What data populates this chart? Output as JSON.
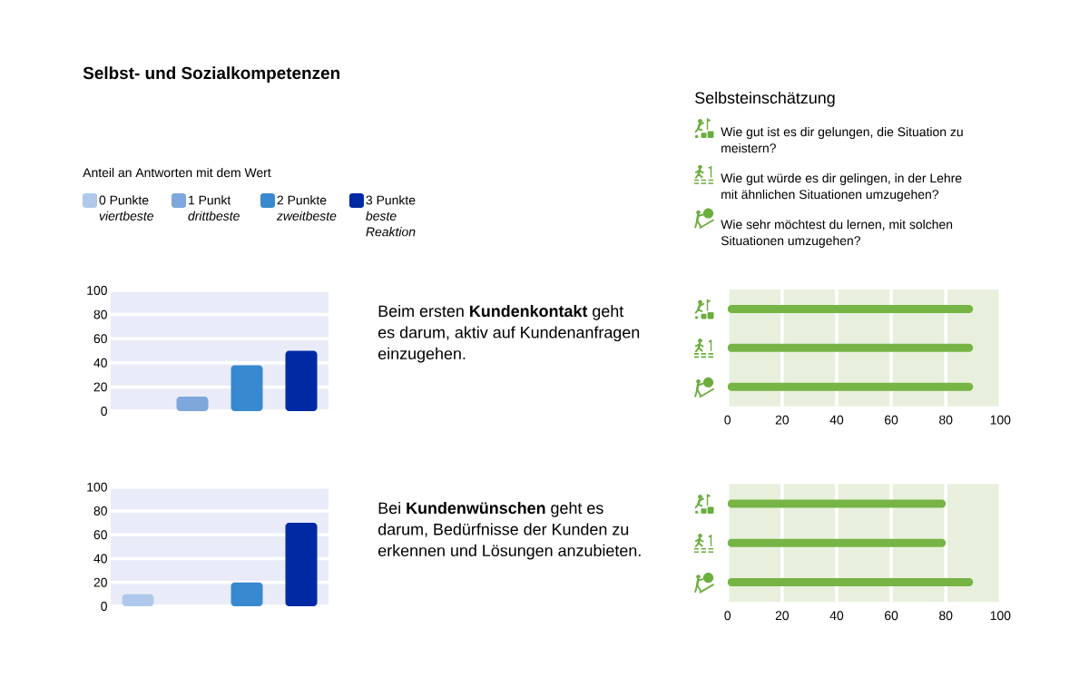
{
  "chart_data": [
    {
      "type": "bar",
      "title": "Selbst- und Sozialkompetenzen",
      "legend_title": "Anteil an Antworten mit dem Wert",
      "categories": [
        null,
        null,
        null,
        null
      ],
      "series": [
        {
          "name": "0 Punkte *viertbeste*",
          "color": "#aec9eb",
          "values": [
            0,
            null,
            null,
            null
          ]
        },
        {
          "name": "1 Punkt *drittbeste*",
          "color": "#7fa7db",
          "values": [
            null,
            12,
            null,
            null
          ]
        },
        {
          "name": "2 Punkte *zweitbeste*",
          "color": "#3889cf",
          "values": [
            null,
            null,
            38,
            null
          ]
        },
        {
          "name": "3 Punkte *beste Reaktion*",
          "color": "#0229a4",
          "values": [
            null,
            null,
            null,
            50
          ]
        }
      ],
      "ylim": [
        0,
        100
      ],
      "yticks": [
        0,
        20,
        40,
        60,
        80,
        100
      ],
      "grid": "y",
      "legend": "top",
      "annotations": [
        "Beim ersten **Kundenkontakt** geht es darum, aktiv auf Kundenanfragen einzugehen."
      ]
    },
    {
      "type": "other",
      "title": "Selbsteinschätzung",
      "annotations": [
        "Wie gut ist es dir gelungen, die Situation zu meistern?",
        "Wie gut würde es dir gelingen, in der Lehre mit ähnlichen Situationen umzugehen?",
        "Wie sehr möchtest du lernen, mit solchen Situationen umzugehen?"
      ]
    },
    {
      "type": "bar",
      "orientation": "horizontal",
      "categories": [
        null,
        null,
        null
      ],
      "values": [
        90,
        90,
        90
      ],
      "color": "#76b445",
      "xlim": [
        0,
        100
      ],
      "xticks": [
        0,
        20,
        40,
        60,
        80,
        100
      ],
      "grid": "x"
    },
    {
      "type": "bar",
      "categories": [
        null,
        null,
        null,
        null
      ],
      "series": [
        {
          "color": "#aec9eb",
          "values": [
            10,
            null,
            null,
            null
          ]
        },
        {
          "color": "#7fa7db",
          "values": [
            null,
            0,
            null,
            null
          ]
        },
        {
          "color": "#3889cf",
          "values": [
            null,
            null,
            20,
            null
          ]
        },
        {
          "color": "#0229a4",
          "values": [
            null,
            null,
            null,
            70
          ]
        }
      ],
      "ylim": [
        0,
        100
      ],
      "yticks": [
        0,
        20,
        40,
        60,
        80,
        100
      ],
      "grid": "y",
      "annotations": [
        "Bei **Kundenwünschen** geht es darum, Bedürfnisse der Kunden zu erkennen und Lösungen anzubieten."
      ]
    },
    {
      "type": "bar",
      "orientation": "horizontal",
      "categories": [
        null,
        null,
        null
      ],
      "values": [
        80,
        80,
        90
      ],
      "color": "#76b445",
      "xlim": [
        0,
        100
      ],
      "xticks": [
        0,
        20,
        40,
        60,
        80,
        100
      ],
      "grid": "x"
    }
  ]
}
